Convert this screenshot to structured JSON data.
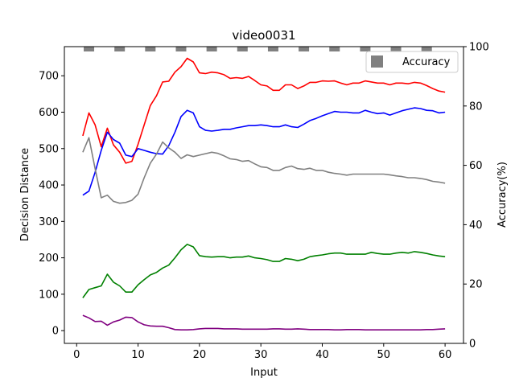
{
  "chart_data": {
    "type": "line",
    "title": "video0031",
    "xlabel": "Input",
    "ylabel": "Decision Distance",
    "y2label": "Accuracy(%)",
    "xlim": [
      -2,
      63
    ],
    "ylim": [
      -35,
      780
    ],
    "y2lim": [
      0,
      100
    ],
    "xticks": [
      0,
      10,
      20,
      30,
      40,
      50,
      60
    ],
    "yticks": [
      0,
      100,
      200,
      300,
      400,
      500,
      600,
      700
    ],
    "y2ticks": [
      0,
      20,
      40,
      60,
      80,
      100
    ],
    "x": [
      1,
      2,
      3,
      4,
      5,
      6,
      7,
      8,
      9,
      10,
      11,
      12,
      13,
      14,
      15,
      16,
      17,
      18,
      19,
      20,
      21,
      22,
      23,
      24,
      25,
      26,
      27,
      28,
      29,
      30,
      31,
      32,
      33,
      34,
      35,
      36,
      37,
      38,
      39,
      40,
      41,
      42,
      43,
      44,
      45,
      46,
      47,
      48,
      49,
      50,
      51,
      52,
      53,
      54,
      55,
      56,
      57,
      58,
      59,
      60
    ],
    "series": [
      {
        "color": "#ff0000",
        "values": [
          535,
          598,
          565,
          505,
          556,
          510,
          490,
          460,
          465,
          512,
          565,
          618,
          645,
          683,
          685,
          710,
          725,
          748,
          738,
          708,
          706,
          710,
          708,
          703,
          693,
          695,
          693,
          698,
          687,
          675,
          672,
          660,
          660,
          675,
          675,
          665,
          672,
          682,
          682,
          686,
          685,
          686,
          680,
          675,
          680,
          680,
          686,
          683,
          680,
          680,
          675,
          680,
          680,
          678,
          682,
          680,
          673,
          665,
          658,
          655
        ]
      },
      {
        "color": "#0000ff",
        "values": [
          372,
          383,
          435,
          495,
          545,
          525,
          515,
          482,
          478,
          500,
          495,
          490,
          486,
          485,
          508,
          545,
          588,
          605,
          598,
          560,
          550,
          548,
          550,
          553,
          553,
          557,
          560,
          563,
          563,
          565,
          563,
          560,
          560,
          565,
          560,
          558,
          567,
          577,
          583,
          590,
          596,
          602,
          600,
          600,
          598,
          598,
          605,
          600,
          596,
          598,
          592,
          598,
          604,
          608,
          612,
          610,
          605,
          604,
          598,
          600
        ]
      },
      {
        "color": "#808080",
        "values": [
          490,
          530,
          445,
          365,
          372,
          355,
          350,
          352,
          358,
          375,
          420,
          460,
          485,
          518,
          502,
          490,
          473,
          483,
          478,
          482,
          486,
          490,
          487,
          480,
          472,
          470,
          465,
          467,
          458,
          450,
          448,
          440,
          440,
          448,
          452,
          445,
          443,
          446,
          440,
          440,
          435,
          432,
          430,
          427,
          430,
          430,
          430,
          430,
          430,
          430,
          428,
          425,
          423,
          420,
          420,
          418,
          415,
          410,
          408,
          405
        ]
      },
      {
        "color": "#008000",
        "values": [
          90,
          113,
          118,
          123,
          155,
          133,
          123,
          106,
          106,
          126,
          140,
          153,
          160,
          172,
          180,
          200,
          222,
          237,
          230,
          206,
          203,
          202,
          203,
          203,
          200,
          202,
          202,
          205,
          200,
          198,
          195,
          190,
          190,
          198,
          196,
          192,
          196,
          203,
          206,
          208,
          211,
          213,
          213,
          210,
          210,
          210,
          210,
          215,
          212,
          210,
          210,
          213,
          215,
          213,
          217,
          215,
          212,
          208,
          205,
          203
        ]
      },
      {
        "color": "#800080",
        "values": [
          42,
          35,
          25,
          26,
          15,
          24,
          29,
          37,
          36,
          24,
          16,
          13,
          12,
          12,
          8,
          3,
          2,
          2,
          3,
          5,
          6,
          6,
          6,
          5,
          5,
          5,
          4,
          4,
          4,
          4,
          4,
          5,
          5,
          4,
          4,
          5,
          4,
          3,
          3,
          3,
          3,
          2,
          2,
          3,
          3,
          3,
          2,
          2,
          2,
          2,
          2,
          2,
          2,
          2,
          2,
          2,
          3,
          3,
          4,
          5
        ]
      }
    ],
    "accuracy_bars": {
      "name": "Accuracy",
      "color": "#808080",
      "x": [
        2,
        7,
        12,
        17,
        22,
        27,
        32,
        37,
        42,
        47,
        52,
        57
      ],
      "values": [
        100,
        100,
        100,
        100,
        100,
        100,
        100,
        100,
        100,
        100,
        100,
        100
      ]
    },
    "legend": {
      "position": "top-right",
      "entries": [
        "Accuracy"
      ]
    }
  }
}
